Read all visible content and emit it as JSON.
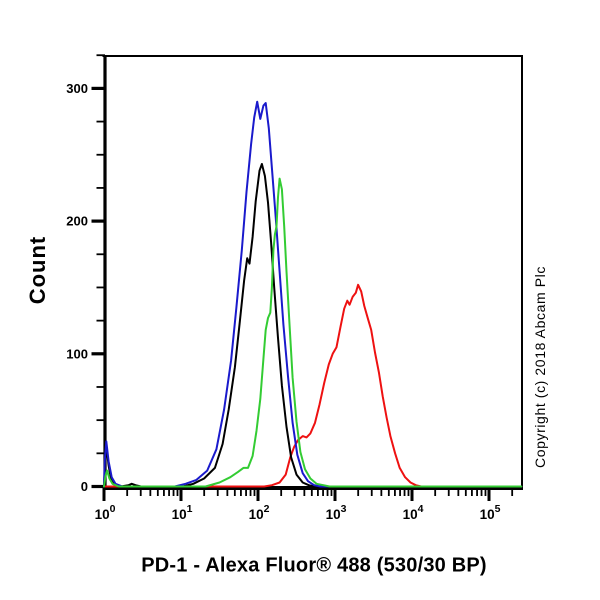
{
  "figure": {
    "background": "#ffffff",
    "axis_color": "#000000"
  },
  "annotations": {
    "copyright": "Copyright (c) 2018 Abcam Plc"
  },
  "chart_data": {
    "type": "line",
    "subtype": "flow-cytometry-histogram-overlay",
    "title": "",
    "xlabel": "PD-1 - Alexa Fluor® 488 (530/30 BP)",
    "ylabel": "Count",
    "x_scale": "log10",
    "x_axis_decades": [
      0,
      1,
      2,
      3,
      4,
      5
    ],
    "x_tick_labels": [
      "10^0",
      "10^1",
      "10^2",
      "10^3",
      "10^4",
      "10^5"
    ],
    "x_range_log10": [
      0,
      5.42
    ],
    "ylim": [
      0,
      325
    ],
    "y_major_ticks": [
      0,
      100,
      200,
      300
    ],
    "y_minor_step": 25,
    "grid": false,
    "legend_position": "none",
    "series": [
      {
        "name": "red-curve",
        "color": "#ee1111",
        "peak": {
          "log10_x": 3.3,
          "count": 152
        },
        "points_log10x_count": [
          [
            0.0,
            0
          ],
          [
            2.08,
            0
          ],
          [
            2.18,
            1
          ],
          [
            2.28,
            3
          ],
          [
            2.36,
            9
          ],
          [
            2.42,
            22
          ],
          [
            2.47,
            30
          ],
          [
            2.52,
            35
          ],
          [
            2.58,
            38
          ],
          [
            2.63,
            37
          ],
          [
            2.68,
            40
          ],
          [
            2.74,
            48
          ],
          [
            2.8,
            62
          ],
          [
            2.86,
            78
          ],
          [
            2.92,
            92
          ],
          [
            2.97,
            100
          ],
          [
            3.02,
            105
          ],
          [
            3.07,
            120
          ],
          [
            3.12,
            134
          ],
          [
            3.16,
            140
          ],
          [
            3.19,
            137
          ],
          [
            3.23,
            143
          ],
          [
            3.27,
            146
          ],
          [
            3.3,
            152
          ],
          [
            3.34,
            147
          ],
          [
            3.38,
            136
          ],
          [
            3.43,
            126
          ],
          [
            3.47,
            118
          ],
          [
            3.52,
            101
          ],
          [
            3.57,
            86
          ],
          [
            3.62,
            68
          ],
          [
            3.67,
            52
          ],
          [
            3.72,
            38
          ],
          [
            3.78,
            25
          ],
          [
            3.84,
            14
          ],
          [
            3.91,
            7
          ],
          [
            3.98,
            3
          ],
          [
            4.05,
            1
          ],
          [
            4.12,
            0
          ],
          [
            5.42,
            0
          ]
        ]
      },
      {
        "name": "black-curve",
        "color": "#000000",
        "peak": {
          "log10_x": 2.05,
          "count": 243
        },
        "points_log10x_count": [
          [
            0.0,
            0
          ],
          [
            0.01,
            14
          ],
          [
            0.03,
            30
          ],
          [
            0.06,
            16
          ],
          [
            0.09,
            6
          ],
          [
            0.13,
            2
          ],
          [
            0.22,
            0
          ],
          [
            0.32,
            1
          ],
          [
            0.36,
            2
          ],
          [
            0.41,
            1
          ],
          [
            0.48,
            0
          ],
          [
            1.02,
            0
          ],
          [
            1.16,
            2
          ],
          [
            1.3,
            6
          ],
          [
            1.44,
            14
          ],
          [
            1.54,
            32
          ],
          [
            1.62,
            58
          ],
          [
            1.7,
            90
          ],
          [
            1.76,
            122
          ],
          [
            1.82,
            155
          ],
          [
            1.86,
            172
          ],
          [
            1.89,
            168
          ],
          [
            1.93,
            188
          ],
          [
            1.97,
            215
          ],
          [
            2.02,
            238
          ],
          [
            2.05,
            243
          ],
          [
            2.09,
            234
          ],
          [
            2.13,
            214
          ],
          [
            2.17,
            184
          ],
          [
            2.21,
            150
          ],
          [
            2.26,
            112
          ],
          [
            2.31,
            76
          ],
          [
            2.37,
            45
          ],
          [
            2.43,
            22
          ],
          [
            2.5,
            9
          ],
          [
            2.58,
            3
          ],
          [
            2.66,
            1
          ],
          [
            2.74,
            0
          ],
          [
            5.42,
            0
          ]
        ]
      },
      {
        "name": "blue-curve",
        "color": "#1a1acc",
        "peak": {
          "log10_x": 1.99,
          "count": 290
        },
        "points_log10x_count": [
          [
            0.0,
            0
          ],
          [
            0.01,
            20
          ],
          [
            0.03,
            34
          ],
          [
            0.06,
            19
          ],
          [
            0.1,
            7
          ],
          [
            0.15,
            2
          ],
          [
            0.24,
            0
          ],
          [
            0.92,
            0
          ],
          [
            1.06,
            2
          ],
          [
            1.2,
            5
          ],
          [
            1.34,
            12
          ],
          [
            1.46,
            28
          ],
          [
            1.56,
            58
          ],
          [
            1.65,
            95
          ],
          [
            1.72,
            135
          ],
          [
            1.79,
            178
          ],
          [
            1.85,
            222
          ],
          [
            1.91,
            258
          ],
          [
            1.95,
            278
          ],
          [
            1.99,
            290
          ],
          [
            2.03,
            277
          ],
          [
            2.07,
            287
          ],
          [
            2.1,
            289
          ],
          [
            2.14,
            270
          ],
          [
            2.18,
            240
          ],
          [
            2.23,
            203
          ],
          [
            2.28,
            162
          ],
          [
            2.33,
            122
          ],
          [
            2.39,
            83
          ],
          [
            2.45,
            48
          ],
          [
            2.51,
            24
          ],
          [
            2.58,
            10
          ],
          [
            2.65,
            4
          ],
          [
            2.73,
            1
          ],
          [
            2.81,
            0
          ],
          [
            5.42,
            0
          ]
        ]
      },
      {
        "name": "green-curve",
        "color": "#33cc33",
        "peak": {
          "log10_x": 2.28,
          "count": 232
        },
        "points_log10x_count": [
          [
            0.0,
            0
          ],
          [
            0.02,
            8
          ],
          [
            0.04,
            12
          ],
          [
            0.07,
            6
          ],
          [
            0.11,
            2
          ],
          [
            0.19,
            0
          ],
          [
            1.32,
            0
          ],
          [
            1.5,
            3
          ],
          [
            1.64,
            7
          ],
          [
            1.74,
            11
          ],
          [
            1.81,
            14
          ],
          [
            1.87,
            14
          ],
          [
            1.93,
            23
          ],
          [
            1.98,
            42
          ],
          [
            2.03,
            66
          ],
          [
            2.07,
            96
          ],
          [
            2.1,
            118
          ],
          [
            2.13,
            127
          ],
          [
            2.16,
            131
          ],
          [
            2.18,
            150
          ],
          [
            2.2,
            178
          ],
          [
            2.22,
            190
          ],
          [
            2.24,
            196
          ],
          [
            2.26,
            218
          ],
          [
            2.28,
            232
          ],
          [
            2.31,
            224
          ],
          [
            2.34,
            196
          ],
          [
            2.37,
            162
          ],
          [
            2.41,
            121
          ],
          [
            2.45,
            82
          ],
          [
            2.5,
            49
          ],
          [
            2.55,
            26
          ],
          [
            2.61,
            13
          ],
          [
            2.68,
            6
          ],
          [
            2.76,
            2
          ],
          [
            2.85,
            1
          ],
          [
            2.93,
            0
          ],
          [
            5.42,
            0
          ]
        ]
      }
    ]
  }
}
